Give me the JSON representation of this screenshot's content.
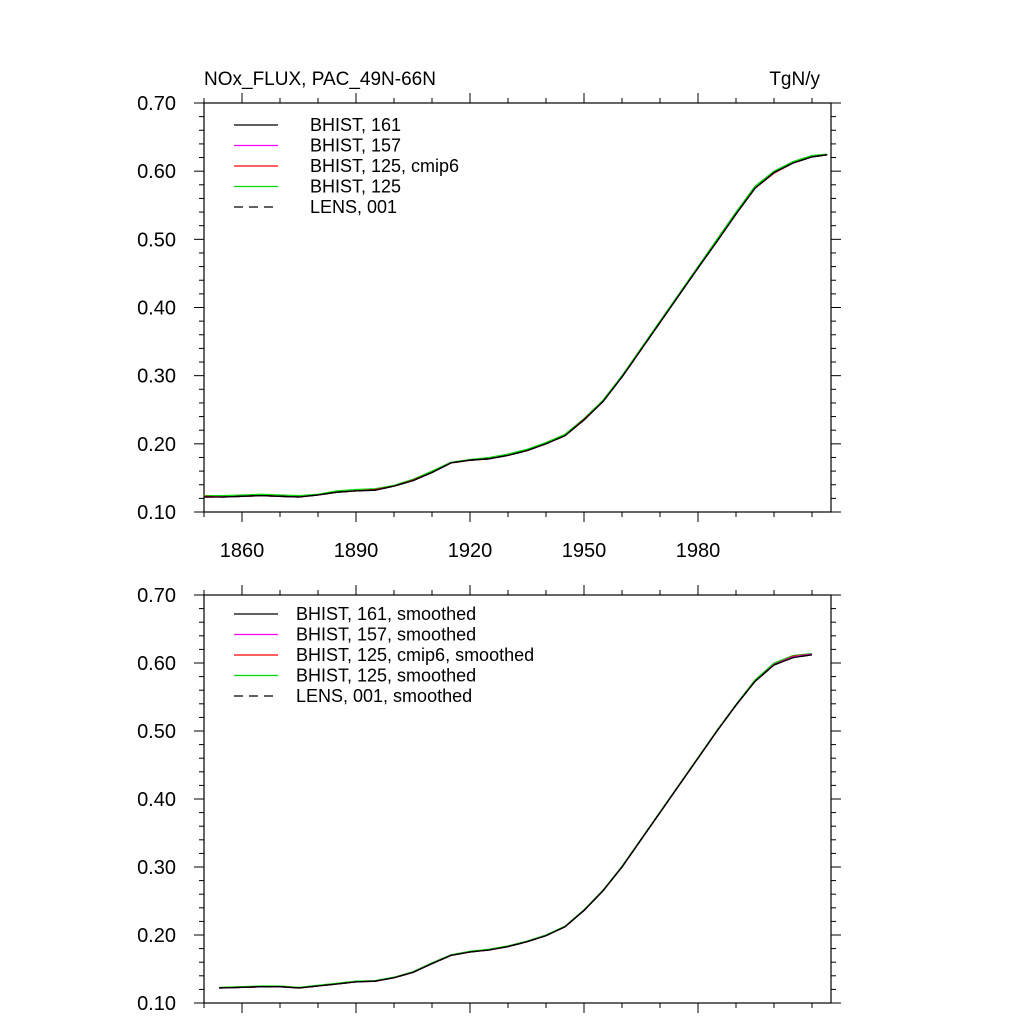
{
  "chart_data": [
    {
      "type": "line",
      "title": "NOx_FLUX, PAC_49N-66N",
      "units": "TgN/y",
      "xlim": [
        1850,
        2015
      ],
      "ylim": [
        0.1,
        0.7
      ],
      "xticks": [
        1860,
        1890,
        1920,
        1950,
        1980
      ],
      "xtick_labels": [
        "1860",
        "1890",
        "1920",
        "1950",
        "1980"
      ],
      "xtick_labels_shown": true,
      "yticks": [
        0.1,
        0.2,
        0.3,
        0.4,
        0.5,
        0.6,
        0.7
      ],
      "ytick_labels": [
        "0.10",
        "0.20",
        "0.30",
        "0.40",
        "0.50",
        "0.60",
        "0.70"
      ],
      "grid": false,
      "legend_position": "top-left",
      "x": [
        1850,
        1855,
        1860,
        1865,
        1870,
        1875,
        1880,
        1885,
        1890,
        1895,
        1900,
        1905,
        1910,
        1915,
        1920,
        1925,
        1930,
        1935,
        1940,
        1945,
        1950,
        1955,
        1960,
        1965,
        1970,
        1975,
        1980,
        1985,
        1990,
        1995,
        2000,
        2005,
        2010,
        2014
      ],
      "series": [
        {
          "name": "BHIST, 161",
          "color": "#000000",
          "dash": "solid",
          "values": [
            0.122,
            0.122,
            0.123,
            0.124,
            0.123,
            0.122,
            0.125,
            0.129,
            0.131,
            0.132,
            0.138,
            0.146,
            0.158,
            0.172,
            0.176,
            0.178,
            0.183,
            0.19,
            0.2,
            0.212,
            0.235,
            0.262,
            0.298,
            0.338,
            0.378,
            0.418,
            0.458,
            0.497,
            0.537,
            0.575,
            0.598,
            0.612,
            0.621,
            0.624
          ]
        },
        {
          "name": "BHIST, 157",
          "color": "#ff00ff",
          "dash": "solid",
          "values": [
            0.122,
            0.122,
            0.123,
            0.124,
            0.123,
            0.122,
            0.125,
            0.129,
            0.131,
            0.132,
            0.138,
            0.146,
            0.158,
            0.172,
            0.176,
            0.178,
            0.183,
            0.19,
            0.2,
            0.212,
            0.235,
            0.262,
            0.298,
            0.338,
            0.378,
            0.418,
            0.458,
            0.497,
            0.537,
            0.575,
            0.598,
            0.612,
            0.621,
            0.624
          ]
        },
        {
          "name": "BHIST, 125, cmip6",
          "color": "#ff0000",
          "dash": "solid",
          "values": [
            0.123,
            0.122,
            0.123,
            0.124,
            0.123,
            0.122,
            0.125,
            0.129,
            0.131,
            0.133,
            0.138,
            0.147,
            0.158,
            0.172,
            0.176,
            0.178,
            0.183,
            0.19,
            0.2,
            0.212,
            0.236,
            0.262,
            0.298,
            0.338,
            0.378,
            0.418,
            0.458,
            0.497,
            0.537,
            0.575,
            0.597,
            0.612,
            0.621,
            0.624
          ]
        },
        {
          "name": "BHIST, 125",
          "color": "#00dd00",
          "dash": "solid",
          "values": [
            0.124,
            0.124,
            0.125,
            0.126,
            0.125,
            0.124,
            0.126,
            0.131,
            0.133,
            0.134,
            0.139,
            0.148,
            0.16,
            0.173,
            0.177,
            0.18,
            0.185,
            0.192,
            0.202,
            0.214,
            0.237,
            0.264,
            0.3,
            0.34,
            0.38,
            0.42,
            0.46,
            0.5,
            0.54,
            0.578,
            0.6,
            0.614,
            0.623,
            0.625
          ]
        },
        {
          "name": "LENS, 001",
          "color": "#000000",
          "dash": "dashed",
          "values": [
            0.122,
            0.122,
            0.123,
            0.124,
            0.123,
            0.122,
            0.125,
            0.129,
            0.131,
            0.132,
            0.138,
            0.146,
            0.158,
            0.172,
            0.176,
            0.178,
            0.183,
            0.19,
            0.2,
            0.212,
            0.235,
            0.262,
            0.298,
            0.338,
            0.378,
            0.418,
            0.458,
            0.497,
            0.537,
            0.575,
            0.598,
            0.612,
            0.621,
            0.624
          ]
        }
      ]
    },
    {
      "type": "line",
      "title": "",
      "units": "",
      "xlim": [
        1850,
        2015
      ],
      "ylim": [
        0.1,
        0.7
      ],
      "xticks": [
        1860,
        1890,
        1920,
        1950,
        1980
      ],
      "xtick_labels": [],
      "xtick_labels_shown": false,
      "yticks": [
        0.1,
        0.2,
        0.3,
        0.4,
        0.5,
        0.6,
        0.7
      ],
      "ytick_labels": [
        "0.10",
        "0.20",
        "0.30",
        "0.40",
        "0.50",
        "0.60",
        "0.70"
      ],
      "grid": false,
      "legend_position": "top-left",
      "x": [
        1854,
        1860,
        1865,
        1870,
        1875,
        1880,
        1885,
        1890,
        1895,
        1900,
        1905,
        1910,
        1915,
        1920,
        1925,
        1930,
        1935,
        1940,
        1945,
        1950,
        1955,
        1960,
        1965,
        1970,
        1975,
        1980,
        1985,
        1990,
        1995,
        2000,
        2005,
        2010
      ],
      "series": [
        {
          "name": "BHIST, 161, smoothed",
          "color": "#000000",
          "dash": "solid",
          "values": [
            0.122,
            0.123,
            0.124,
            0.124,
            0.122,
            0.125,
            0.128,
            0.131,
            0.132,
            0.137,
            0.145,
            0.158,
            0.17,
            0.175,
            0.178,
            0.183,
            0.19,
            0.199,
            0.212,
            0.236,
            0.265,
            0.3,
            0.34,
            0.38,
            0.42,
            0.46,
            0.5,
            0.538,
            0.573,
            0.597,
            0.608,
            0.612
          ]
        },
        {
          "name": "BHIST, 157, smoothed",
          "color": "#ff00ff",
          "dash": "solid",
          "values": [
            0.122,
            0.123,
            0.124,
            0.124,
            0.122,
            0.125,
            0.128,
            0.131,
            0.132,
            0.137,
            0.145,
            0.158,
            0.17,
            0.175,
            0.178,
            0.183,
            0.19,
            0.199,
            0.212,
            0.236,
            0.265,
            0.3,
            0.34,
            0.38,
            0.42,
            0.46,
            0.5,
            0.538,
            0.573,
            0.598,
            0.609,
            0.613
          ]
        },
        {
          "name": "BHIST, 125, cmip6, smoothed",
          "color": "#ff0000",
          "dash": "solid",
          "values": [
            0.122,
            0.123,
            0.124,
            0.124,
            0.122,
            0.125,
            0.128,
            0.131,
            0.132,
            0.137,
            0.145,
            0.158,
            0.17,
            0.175,
            0.178,
            0.183,
            0.19,
            0.199,
            0.212,
            0.236,
            0.265,
            0.3,
            0.34,
            0.38,
            0.42,
            0.46,
            0.5,
            0.538,
            0.573,
            0.598,
            0.61,
            0.613
          ]
        },
        {
          "name": "BHIST, 125, smoothed",
          "color": "#00dd00",
          "dash": "solid",
          "values": [
            0.123,
            0.124,
            0.125,
            0.125,
            0.123,
            0.126,
            0.129,
            0.132,
            0.133,
            0.138,
            0.146,
            0.159,
            0.171,
            0.176,
            0.179,
            0.184,
            0.191,
            0.2,
            0.213,
            0.237,
            0.266,
            0.301,
            0.341,
            0.381,
            0.421,
            0.461,
            0.501,
            0.539,
            0.575,
            0.6,
            0.611,
            0.614
          ]
        },
        {
          "name": "LENS, 001, smoothed",
          "color": "#000000",
          "dash": "dashed",
          "values": [
            0.122,
            0.123,
            0.124,
            0.124,
            0.122,
            0.125,
            0.128,
            0.131,
            0.132,
            0.137,
            0.145,
            0.158,
            0.17,
            0.175,
            0.178,
            0.183,
            0.19,
            0.199,
            0.212,
            0.236,
            0.265,
            0.3,
            0.34,
            0.38,
            0.42,
            0.46,
            0.5,
            0.538,
            0.573,
            0.597,
            0.608,
            0.612
          ]
        }
      ]
    }
  ]
}
